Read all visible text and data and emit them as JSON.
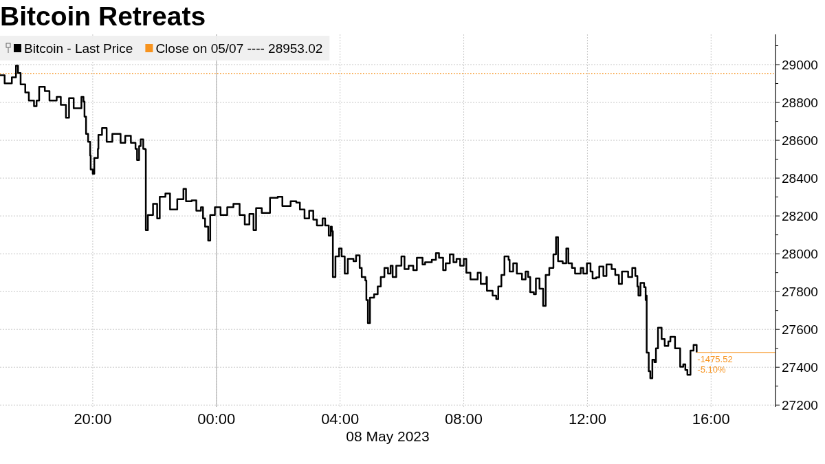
{
  "chart_data": {
    "type": "step",
    "title": "Bitcoin Retreats",
    "xlabel": "08 May 2023",
    "xlim": [
      "2023-05-07T17:00",
      "2023-05-08T18:05"
    ],
    "xticks": [
      {
        "value": "2023-05-07T20:00",
        "label": "20:00"
      },
      {
        "value": "2023-05-08T00:00",
        "label": "00:00"
      },
      {
        "value": "2023-05-08T04:00",
        "label": "04:00"
      },
      {
        "value": "2023-05-08T08:00",
        "label": "08:00"
      },
      {
        "value": "2023-05-08T12:00",
        "label": "12:00"
      },
      {
        "value": "2023-05-08T16:00",
        "label": "16:00"
      }
    ],
    "ylim": [
      27190,
      29160
    ],
    "yticks": [
      27200,
      {
        "value": 27300,
        "label": null
      },
      27400,
      {
        "value": 27500,
        "label": null
      },
      27600,
      {
        "value": 27700,
        "label": null
      },
      27800,
      {
        "value": 27900,
        "label": null
      },
      28000,
      {
        "value": 28100,
        "label": null
      },
      28200,
      {
        "value": 28300,
        "label": null
      },
      28400,
      {
        "value": 28500,
        "label": null
      },
      28600,
      {
        "value": 28700,
        "label": null
      },
      28800,
      {
        "value": 28900,
        "label": null
      },
      29000,
      {
        "value": 29100,
        "label": null
      }
    ],
    "grid": true,
    "legend": "top left",
    "series": [
      {
        "name": "Bitcoin - Last Price",
        "color": "#000000",
        "x": [
          "2023-05-07T17:00",
          "2023-05-07T17:09",
          "2023-05-07T17:23",
          "2023-05-07T17:31",
          "2023-05-07T17:35",
          "2023-05-07T17:40",
          "2023-05-07T17:49",
          "2023-05-07T17:56",
          "2023-05-07T18:06",
          "2023-05-07T18:11",
          "2023-05-07T18:16",
          "2023-05-07T18:27",
          "2023-05-07T18:36",
          "2023-05-07T18:50",
          "2023-05-07T18:58",
          "2023-05-07T19:08",
          "2023-05-07T19:14",
          "2023-05-07T19:23",
          "2023-05-07T19:38",
          "2023-05-07T19:42",
          "2023-05-07T19:44",
          "2023-05-07T19:47",
          "2023-05-07T19:51",
          "2023-05-07T19:55",
          "2023-05-07T19:56",
          "2023-05-07T20:00",
          "2023-05-07T20:03",
          "2023-05-07T20:10",
          "2023-05-07T20:11",
          "2023-05-07T20:18",
          "2023-05-07T20:27",
          "2023-05-07T20:38",
          "2023-05-07T20:54",
          "2023-05-07T21:03",
          "2023-05-07T21:14",
          "2023-05-07T21:23",
          "2023-05-07T21:26",
          "2023-05-07T21:30",
          "2023-05-07T21:33",
          "2023-05-07T21:38",
          "2023-05-07T21:42",
          "2023-05-07T21:43",
          "2023-05-07T21:47",
          "2023-05-07T21:57",
          "2023-05-07T22:05",
          "2023-05-07T22:10",
          "2023-05-07T22:21",
          "2023-05-07T22:30",
          "2023-05-07T22:44",
          "2023-05-07T22:56",
          "2023-05-07T23:01",
          "2023-05-07T23:12",
          "2023-05-07T23:21",
          "2023-05-07T23:30",
          "2023-05-07T23:34",
          "2023-05-07T23:38",
          "2023-05-07T23:44",
          "2023-05-07T23:48",
          "2023-05-07T23:57",
          "2023-05-08T00:08",
          "2023-05-08T00:21",
          "2023-05-08T00:33",
          "2023-05-08T00:45",
          "2023-05-08T00:55",
          "2023-05-08T01:04",
          "2023-05-08T01:12",
          "2023-05-08T01:17",
          "2023-05-08T01:28",
          "2023-05-08T01:44",
          "2023-05-08T01:59",
          "2023-05-08T02:08",
          "2023-05-08T02:24",
          "2023-05-08T02:35",
          "2023-05-08T02:42",
          "2023-05-08T02:51",
          "2023-05-08T03:00",
          "2023-05-08T03:08",
          "2023-05-08T03:15",
          "2023-05-08T03:26",
          "2023-05-08T03:31",
          "2023-05-08T03:38",
          "2023-05-08T03:42",
          "2023-05-08T03:44",
          "2023-05-08T03:46",
          "2023-05-08T03:51",
          "2023-05-08T03:58",
          "2023-05-08T04:03",
          "2023-05-08T04:09",
          "2023-05-08T04:15",
          "2023-05-08T04:26",
          "2023-05-08T04:31",
          "2023-05-08T04:38",
          "2023-05-08T04:42",
          "2023-05-08T04:49",
          "2023-05-08T04:51",
          "2023-05-08T04:54",
          "2023-05-08T04:58",
          "2023-05-08T05:06",
          "2023-05-08T05:13",
          "2023-05-08T05:19",
          "2023-05-08T05:26",
          "2023-05-08T05:33",
          "2023-05-08T05:38",
          "2023-05-08T05:42",
          "2023-05-08T05:49",
          "2023-05-08T05:59",
          "2023-05-08T06:05",
          "2023-05-08T06:13",
          "2023-05-08T06:22",
          "2023-05-08T06:29",
          "2023-05-08T06:40",
          "2023-05-08T06:45",
          "2023-05-08T06:58",
          "2023-05-08T07:06",
          "2023-05-08T07:12",
          "2023-05-08T07:20",
          "2023-05-08T07:25",
          "2023-05-08T07:33",
          "2023-05-08T07:40",
          "2023-05-08T07:46",
          "2023-05-08T07:53",
          "2023-05-08T08:00",
          "2023-05-08T08:05",
          "2023-05-08T08:13",
          "2023-05-08T08:27",
          "2023-05-08T08:33",
          "2023-05-08T08:44",
          "2023-05-08T08:45",
          "2023-05-08T08:56",
          "2023-05-08T09:03",
          "2023-05-08T09:07",
          "2023-05-08T09:13",
          "2023-05-08T09:19",
          "2023-05-08T09:27",
          "2023-05-08T09:29",
          "2023-05-08T09:36",
          "2023-05-08T09:43",
          "2023-05-08T09:53",
          "2023-05-08T10:00",
          "2023-05-08T10:05",
          "2023-05-08T10:09",
          "2023-05-08T10:16",
          "2023-05-08T10:20",
          "2023-05-08T10:27",
          "2023-05-08T10:34",
          "2023-05-08T10:39",
          "2023-05-08T10:46",
          "2023-05-08T10:54",
          "2023-05-08T10:59",
          "2023-05-08T11:03",
          "2023-05-08T11:12",
          "2023-05-08T11:19",
          "2023-05-08T11:23",
          "2023-05-08T11:30",
          "2023-05-08T11:36",
          "2023-05-08T11:47",
          "2023-05-08T11:52",
          "2023-05-08T11:59",
          "2023-05-08T12:06",
          "2023-05-08T12:10",
          "2023-05-08T12:17",
          "2023-05-08T12:23",
          "2023-05-08T12:31",
          "2023-05-08T12:37",
          "2023-05-08T12:47",
          "2023-05-08T12:54",
          "2023-05-08T13:01",
          "2023-05-08T13:07",
          "2023-05-08T13:19",
          "2023-05-08T13:27",
          "2023-05-08T13:33",
          "2023-05-08T13:37",
          "2023-05-08T13:39",
          "2023-05-08T13:43",
          "2023-05-08T13:50",
          "2023-05-08T13:53",
          "2023-05-08T13:54",
          "2023-05-08T13:55",
          "2023-05-08T13:59",
          "2023-05-08T14:02",
          "2023-05-08T14:06",
          "2023-05-08T14:10",
          "2023-05-08T14:13",
          "2023-05-08T14:17",
          "2023-05-08T14:24",
          "2023-05-08T14:30",
          "2023-05-08T14:37",
          "2023-05-08T14:41",
          "2023-05-08T14:50",
          "2023-05-08T15:00",
          "2023-05-08T15:06",
          "2023-05-08T15:10",
          "2023-05-08T15:14",
          "2023-05-08T15:20",
          "2023-05-08T15:26",
          "2023-05-08T15:32"
        ],
        "values": [
          28944,
          28901,
          28933,
          28995,
          28956,
          28896,
          28853,
          28810,
          28780,
          28810,
          28883,
          28860,
          28810,
          28829,
          28787,
          28719,
          28823,
          28769,
          28829,
          28805,
          28725,
          28634,
          28592,
          28519,
          28446,
          28423,
          28507,
          28555,
          28628,
          28665,
          28592,
          28634,
          28587,
          28624,
          28587,
          28555,
          28496,
          28569,
          28605,
          28555,
          28551,
          28125,
          28205,
          28264,
          28187,
          28301,
          28319,
          28234,
          28289,
          28343,
          28278,
          28282,
          28228,
          28246,
          28187,
          28143,
          28070,
          28205,
          28246,
          28205,
          28246,
          28264,
          28205,
          28155,
          28210,
          28125,
          28241,
          28216,
          28296,
          28301,
          28252,
          28278,
          28270,
          28234,
          28187,
          28228,
          28180,
          28150,
          28187,
          28150,
          28096,
          28143,
          28119,
          27877,
          27986,
          28028,
          27986,
          27895,
          27973,
          27961,
          27991,
          27925,
          27877,
          27859,
          27755,
          27633,
          27768,
          27786,
          27827,
          27877,
          27925,
          27895,
          27937,
          27877,
          27937,
          27986,
          27919,
          27937,
          27913,
          27979,
          27943,
          27955,
          27968,
          28003,
          27979,
          27913,
          27950,
          27997,
          27955,
          27973,
          27937,
          27973,
          27900,
          27864,
          27900,
          27841,
          27877,
          27804,
          27779,
          27761,
          27827,
          27888,
          27986,
          27968,
          27906,
          27950,
          27895,
          27864,
          27906,
          27877,
          27797,
          27786,
          27870,
          27815,
          27724,
          27888,
          27925,
          27997,
          28088,
          27961,
          27950,
          28028,
          27950,
          27925,
          27895,
          27925,
          27895,
          27950,
          27906,
          27870,
          27875,
          27932,
          27882,
          27943,
          27919,
          27888,
          27841,
          27906,
          27877,
          27925,
          27882,
          27827,
          27779,
          27846,
          27823,
          27755,
          27779,
          27477,
          27379,
          27342,
          27440,
          27427,
          27500,
          27609,
          27549,
          27513,
          27536,
          27561,
          27500,
          27403,
          27415,
          27385,
          27360,
          27488,
          27518,
          27478
        ]
      },
      {
        "type": "line",
        "color": "#f7931e",
        "x": [
          "2023-05-08T15:32",
          "2023-05-08T18:05"
        ],
        "values": [
          27478,
          27478
        ]
      }
    ],
    "ref_lines": [
      {
        "axis": "y",
        "value": 28953.02,
        "label": "Close on 05/07 ---- 28953.02",
        "color": "#f7931e",
        "line_style": "dotted"
      },
      {
        "axis": "x",
        "value": "2023-05-08T00:00",
        "label": null,
        "color": "#b4b4b4",
        "line_style": "solid"
      }
    ],
    "annotations": [
      {
        "text": "-1475.52",
        "x": "2023-05-08T15:32",
        "y": 27478
      },
      {
        "text": "-5.10%",
        "x": "2023-05-08T15:32",
        "y": 27478
      }
    ]
  }
}
